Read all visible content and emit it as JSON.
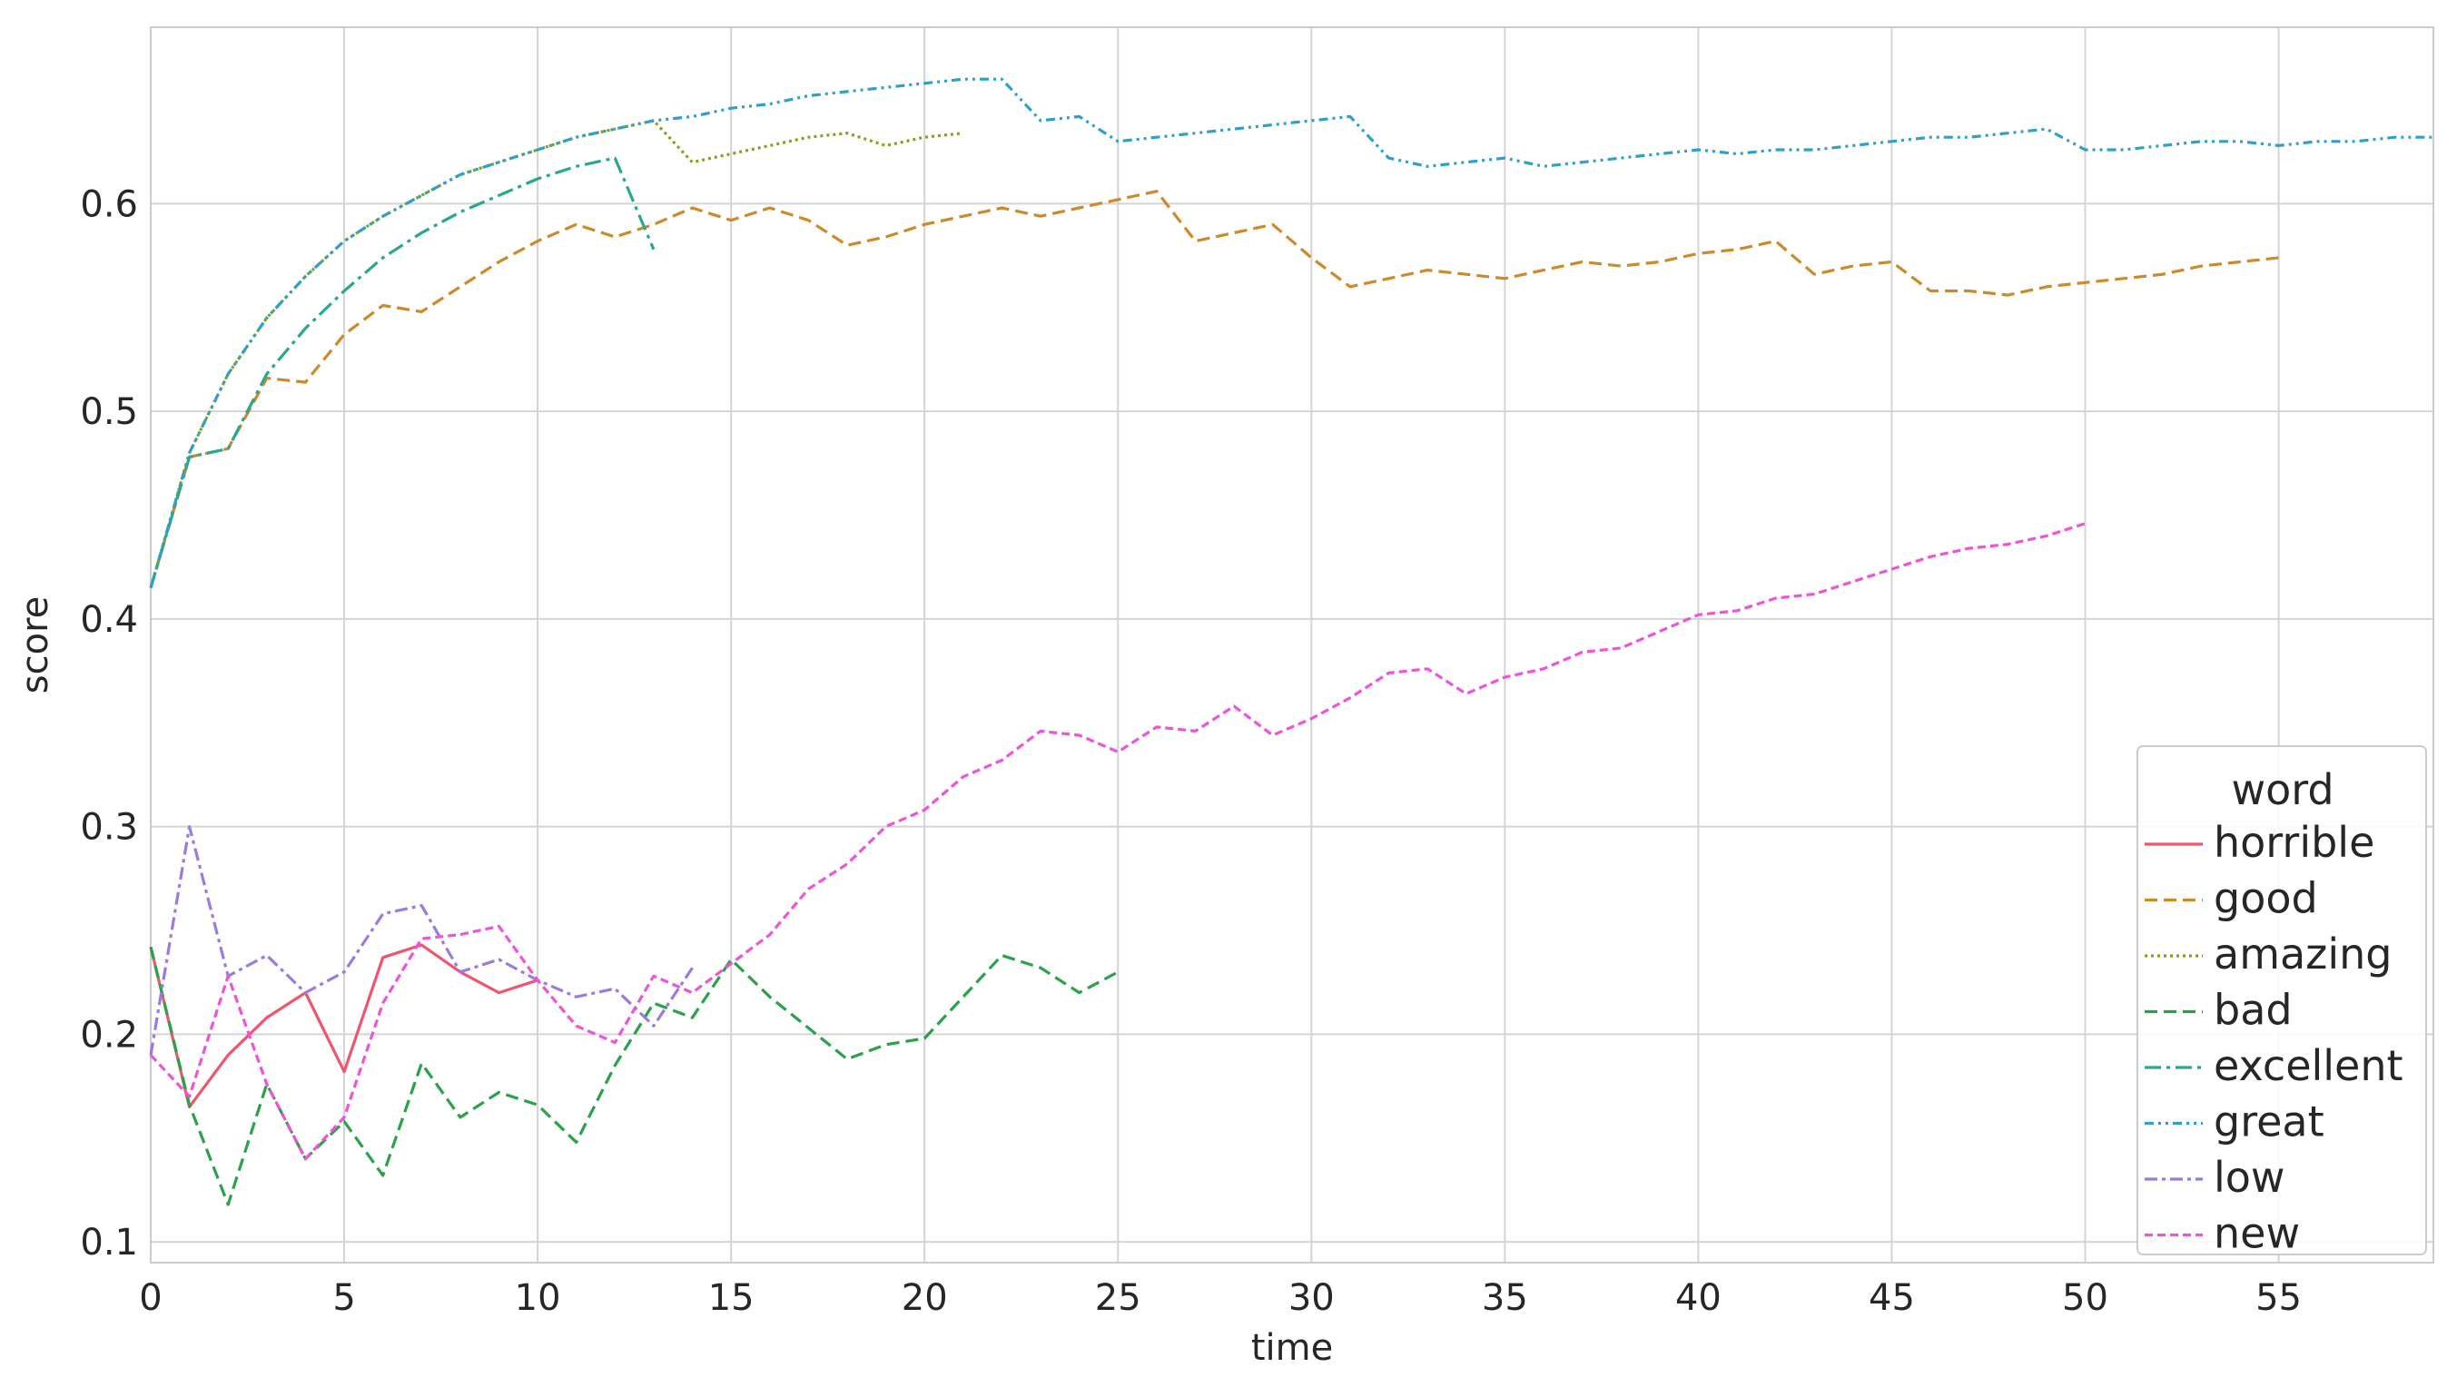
{
  "chart_data": {
    "type": "line",
    "xlabel": "time",
    "ylabel": "score",
    "xlim": [
      0,
      59
    ],
    "ylim": [
      0.09,
      0.685
    ],
    "xticks": [
      0,
      5,
      10,
      15,
      20,
      25,
      30,
      35,
      40,
      45,
      50,
      55
    ],
    "yticks": [
      0.1,
      0.2,
      0.3,
      0.4,
      0.5,
      0.6
    ],
    "grid": true,
    "legend": {
      "title": "word",
      "placement": "lower-right"
    },
    "series": [
      {
        "name": "horrible",
        "color": "#f0556f",
        "dash": "solid",
        "x": [
          0,
          1,
          2,
          3,
          4,
          5,
          6,
          7,
          8,
          9,
          10
        ],
        "y": [
          0.242,
          0.165,
          0.19,
          0.208,
          0.22,
          0.182,
          0.237,
          0.243,
          0.23,
          0.22,
          0.226
        ]
      },
      {
        "name": "good",
        "color": "#cc8a2a",
        "dash": "dashed",
        "x": [
          0,
          1,
          2,
          3,
          4,
          5,
          6,
          7,
          8,
          9,
          10,
          11,
          12,
          13,
          14,
          15,
          16,
          17,
          18,
          19,
          20,
          21,
          22,
          23,
          24,
          25,
          26,
          27,
          28,
          29,
          30,
          31,
          32,
          33,
          34,
          35,
          36,
          37,
          38,
          39,
          40,
          41,
          42,
          43,
          44,
          45,
          46,
          47,
          48,
          49,
          50,
          51,
          52,
          53,
          54,
          55
        ],
        "y": [
          0.415,
          0.478,
          0.482,
          0.516,
          0.514,
          0.537,
          0.551,
          0.548,
          0.56,
          0.572,
          0.582,
          0.59,
          0.584,
          0.59,
          0.598,
          0.592,
          0.598,
          0.592,
          0.58,
          0.584,
          0.59,
          0.594,
          0.598,
          0.594,
          0.598,
          0.602,
          0.606,
          0.582,
          0.586,
          0.59,
          0.574,
          0.56,
          0.564,
          0.568,
          0.566,
          0.564,
          0.568,
          0.572,
          0.57,
          0.572,
          0.576,
          0.578,
          0.582,
          0.566,
          0.57,
          0.572,
          0.558,
          0.558,
          0.556,
          0.56,
          0.562,
          0.564,
          0.566,
          0.57,
          0.572,
          0.574
        ]
      },
      {
        "name": "amazing",
        "color": "#8a9e1f",
        "dash": "dotted",
        "x": [
          0,
          1,
          2,
          3,
          4,
          5,
          6,
          7,
          8,
          9,
          10,
          11,
          12,
          13,
          14,
          15,
          16,
          17,
          18,
          19,
          20,
          21
        ],
        "y": [
          0.415,
          0.48,
          0.518,
          0.545,
          0.565,
          0.582,
          0.594,
          0.604,
          0.614,
          0.62,
          0.626,
          0.632,
          0.636,
          0.64,
          0.62,
          0.624,
          0.628,
          0.632,
          0.634,
          0.628,
          0.632,
          0.634
        ]
      },
      {
        "name": "bad",
        "color": "#2ba24a",
        "dash": "dashed",
        "x": [
          0,
          1,
          2,
          3,
          4,
          5,
          6,
          7,
          8,
          9,
          10,
          11,
          12,
          13,
          14,
          15,
          16,
          17,
          18,
          19,
          20,
          21,
          22,
          23,
          24,
          25
        ],
        "y": [
          0.242,
          0.166,
          0.118,
          0.176,
          0.14,
          0.158,
          0.132,
          0.186,
          0.16,
          0.172,
          0.166,
          0.148,
          0.185,
          0.215,
          0.208,
          0.236,
          0.218,
          0.203,
          0.188,
          0.195,
          0.198,
          0.218,
          0.238,
          0.232,
          0.22,
          0.23
        ]
      },
      {
        "name": "excellent",
        "color": "#27a88f",
        "dash": "dashdot",
        "x": [
          0,
          1,
          2,
          3,
          4,
          5,
          6,
          7,
          8,
          9,
          10,
          11,
          12,
          13
        ],
        "y": [
          0.415,
          0.478,
          0.482,
          0.518,
          0.54,
          0.558,
          0.574,
          0.586,
          0.596,
          0.604,
          0.612,
          0.618,
          0.622,
          0.578
        ]
      },
      {
        "name": "great",
        "color": "#2fa0c8",
        "dash": "dashdotdot",
        "x": [
          0,
          1,
          2,
          3,
          4,
          5,
          6,
          7,
          8,
          9,
          10,
          11,
          12,
          13,
          14,
          15,
          16,
          17,
          18,
          19,
          20,
          21,
          22,
          23,
          24,
          25,
          26,
          27,
          28,
          29,
          30,
          31,
          32,
          33,
          34,
          35,
          36,
          37,
          38,
          39,
          40,
          41,
          42,
          43,
          44,
          45,
          46,
          47,
          48,
          49,
          50,
          51,
          52,
          53,
          54,
          55,
          56,
          57,
          58,
          59
        ],
        "y": [
          0.415,
          0.48,
          0.518,
          0.545,
          0.565,
          0.582,
          0.594,
          0.604,
          0.614,
          0.62,
          0.626,
          0.632,
          0.636,
          0.64,
          0.642,
          0.646,
          0.648,
          0.652,
          0.654,
          0.656,
          0.658,
          0.66,
          0.66,
          0.64,
          0.642,
          0.63,
          0.632,
          0.634,
          0.636,
          0.638,
          0.64,
          0.642,
          0.622,
          0.618,
          0.62,
          0.622,
          0.618,
          0.62,
          0.622,
          0.624,
          0.626,
          0.624,
          0.626,
          0.626,
          0.628,
          0.63,
          0.632,
          0.632,
          0.634,
          0.636,
          0.626,
          0.626,
          0.628,
          0.63,
          0.63,
          0.628,
          0.63,
          0.63,
          0.632,
          0.632
        ]
      },
      {
        "name": "low",
        "color": "#9b7be0",
        "dash": "dashed-dot-alt",
        "x": [
          0,
          1,
          2,
          3,
          4,
          5,
          6,
          7,
          8,
          9,
          10,
          11,
          12,
          13,
          14
        ],
        "y": [
          0.19,
          0.3,
          0.228,
          0.238,
          0.22,
          0.23,
          0.258,
          0.262,
          0.23,
          0.236,
          0.226,
          0.218,
          0.222,
          0.204,
          0.232
        ]
      },
      {
        "name": "new",
        "color": "#ee55d6",
        "dash": "dashed-fine",
        "x": [
          0,
          1,
          2,
          3,
          4,
          5,
          6,
          7,
          8,
          9,
          10,
          11,
          12,
          13,
          14,
          15,
          16,
          17,
          18,
          19,
          20,
          21,
          22,
          23,
          24,
          25,
          26,
          27,
          28,
          29,
          30,
          31,
          32,
          33,
          34,
          35,
          36,
          37,
          38,
          39,
          40,
          41,
          42,
          43,
          44,
          45,
          46,
          47,
          48,
          49,
          50
        ],
        "y": [
          0.19,
          0.17,
          0.228,
          0.176,
          0.14,
          0.16,
          0.215,
          0.246,
          0.248,
          0.252,
          0.226,
          0.204,
          0.196,
          0.228,
          0.22,
          0.234,
          0.248,
          0.27,
          0.282,
          0.3,
          0.308,
          0.324,
          0.332,
          0.346,
          0.344,
          0.336,
          0.348,
          0.346,
          0.358,
          0.344,
          0.352,
          0.362,
          0.374,
          0.376,
          0.364,
          0.372,
          0.376,
          0.384,
          0.386,
          0.394,
          0.402,
          0.404,
          0.41,
          0.412,
          0.418,
          0.424,
          0.43,
          0.434,
          0.436,
          0.44,
          0.446
        ]
      }
    ]
  }
}
